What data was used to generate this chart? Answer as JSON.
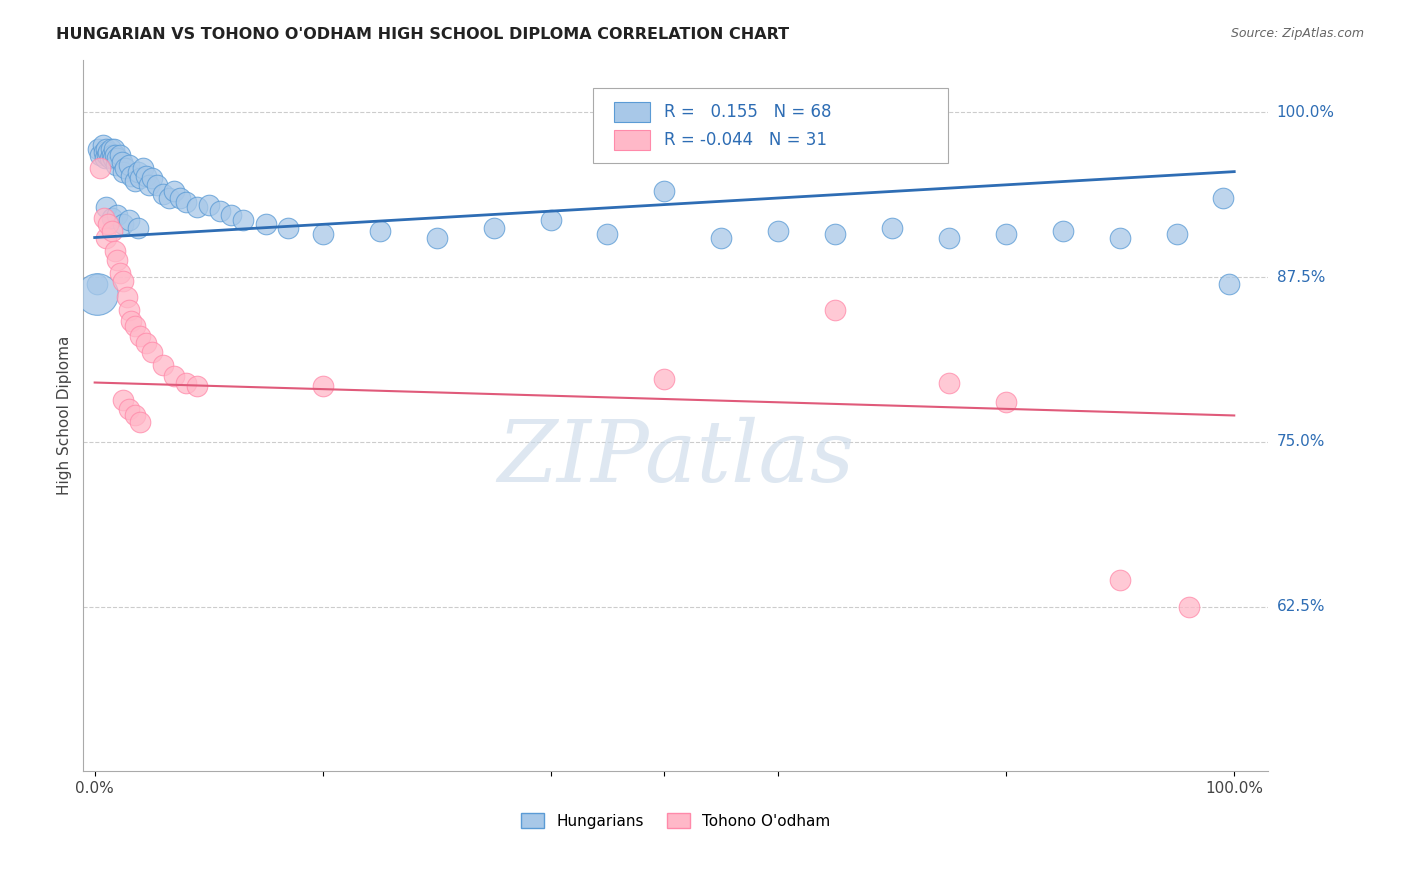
{
  "title": "HUNGARIAN VS TOHONO O'ODHAM HIGH SCHOOL DIPLOMA CORRELATION CHART",
  "source": "Source: ZipAtlas.com",
  "ylabel": "High School Diploma",
  "legend_label1": "Hungarians",
  "legend_label2": "Tohono O'odham",
  "r1": 0.155,
  "n1": 68,
  "r2": -0.044,
  "n2": 31,
  "ytick_labels": [
    "100.0%",
    "87.5%",
    "75.0%",
    "62.5%"
  ],
  "ytick_values": [
    1.0,
    0.875,
    0.75,
    0.625
  ],
  "ymin": 0.5,
  "ymax": 1.04,
  "xmin": -0.01,
  "xmax": 1.03,
  "blue_color": "#a8c8e8",
  "blue_edge_color": "#5b9bd5",
  "pink_color": "#ffb8c8",
  "pink_edge_color": "#ff8aaa",
  "blue_line_color": "#2e6db4",
  "pink_line_color": "#e05a7a",
  "tick_label_color": "#2e6db4",
  "watermark": "ZIPatlas",
  "blue_line_x0": 0.0,
  "blue_line_y0": 0.905,
  "blue_line_x1": 1.0,
  "blue_line_y1": 0.955,
  "pink_line_x0": 0.0,
  "pink_line_y0": 0.795,
  "pink_line_x1": 1.0,
  "pink_line_y1": 0.77,
  "blue_scatter": [
    [
      0.003,
      0.972
    ],
    [
      0.005,
      0.968
    ],
    [
      0.007,
      0.975
    ],
    [
      0.008,
      0.97
    ],
    [
      0.009,
      0.965
    ],
    [
      0.01,
      0.972
    ],
    [
      0.011,
      0.968
    ],
    [
      0.012,
      0.97
    ],
    [
      0.013,
      0.965
    ],
    [
      0.014,
      0.972
    ],
    [
      0.015,
      0.968
    ],
    [
      0.016,
      0.965
    ],
    [
      0.017,
      0.972
    ],
    [
      0.018,
      0.968
    ],
    [
      0.019,
      0.96
    ],
    [
      0.02,
      0.965
    ],
    [
      0.022,
      0.968
    ],
    [
      0.024,
      0.962
    ],
    [
      0.025,
      0.955
    ],
    [
      0.027,
      0.958
    ],
    [
      0.03,
      0.96
    ],
    [
      0.032,
      0.952
    ],
    [
      0.035,
      0.948
    ],
    [
      0.038,
      0.955
    ],
    [
      0.04,
      0.95
    ],
    [
      0.042,
      0.958
    ],
    [
      0.045,
      0.952
    ],
    [
      0.048,
      0.945
    ],
    [
      0.05,
      0.95
    ],
    [
      0.055,
      0.945
    ],
    [
      0.06,
      0.938
    ],
    [
      0.065,
      0.935
    ],
    [
      0.07,
      0.94
    ],
    [
      0.075,
      0.935
    ],
    [
      0.08,
      0.932
    ],
    [
      0.09,
      0.928
    ],
    [
      0.1,
      0.93
    ],
    [
      0.11,
      0.925
    ],
    [
      0.12,
      0.922
    ],
    [
      0.13,
      0.918
    ],
    [
      0.15,
      0.915
    ],
    [
      0.17,
      0.912
    ],
    [
      0.01,
      0.928
    ],
    [
      0.015,
      0.92
    ],
    [
      0.02,
      0.922
    ],
    [
      0.025,
      0.915
    ],
    [
      0.03,
      0.918
    ],
    [
      0.038,
      0.912
    ],
    [
      0.2,
      0.908
    ],
    [
      0.25,
      0.91
    ],
    [
      0.3,
      0.905
    ],
    [
      0.35,
      0.912
    ],
    [
      0.4,
      0.918
    ],
    [
      0.45,
      0.908
    ],
    [
      0.5,
      0.94
    ],
    [
      0.55,
      0.905
    ],
    [
      0.6,
      0.91
    ],
    [
      0.65,
      0.908
    ],
    [
      0.7,
      0.912
    ],
    [
      0.75,
      0.905
    ],
    [
      0.8,
      0.908
    ],
    [
      0.85,
      0.91
    ],
    [
      0.9,
      0.905
    ],
    [
      0.95,
      0.908
    ],
    [
      0.99,
      0.935
    ],
    [
      0.995,
      0.87
    ],
    [
      0.002,
      0.87
    ],
    [
      0.002,
      0.862
    ]
  ],
  "blue_large_idx": 67,
  "pink_scatter": [
    [
      0.005,
      0.958
    ],
    [
      0.008,
      0.92
    ],
    [
      0.01,
      0.905
    ],
    [
      0.012,
      0.915
    ],
    [
      0.015,
      0.91
    ],
    [
      0.018,
      0.895
    ],
    [
      0.02,
      0.888
    ],
    [
      0.022,
      0.878
    ],
    [
      0.025,
      0.872
    ],
    [
      0.028,
      0.86
    ],
    [
      0.03,
      0.85
    ],
    [
      0.032,
      0.842
    ],
    [
      0.035,
      0.838
    ],
    [
      0.04,
      0.83
    ],
    [
      0.045,
      0.825
    ],
    [
      0.05,
      0.818
    ],
    [
      0.06,
      0.808
    ],
    [
      0.07,
      0.8
    ],
    [
      0.08,
      0.795
    ],
    [
      0.09,
      0.792
    ],
    [
      0.025,
      0.782
    ],
    [
      0.03,
      0.775
    ],
    [
      0.035,
      0.77
    ],
    [
      0.04,
      0.765
    ],
    [
      0.2,
      0.792
    ],
    [
      0.5,
      0.798
    ],
    [
      0.65,
      0.85
    ],
    [
      0.75,
      0.795
    ],
    [
      0.8,
      0.78
    ],
    [
      0.9,
      0.645
    ],
    [
      0.96,
      0.625
    ]
  ]
}
